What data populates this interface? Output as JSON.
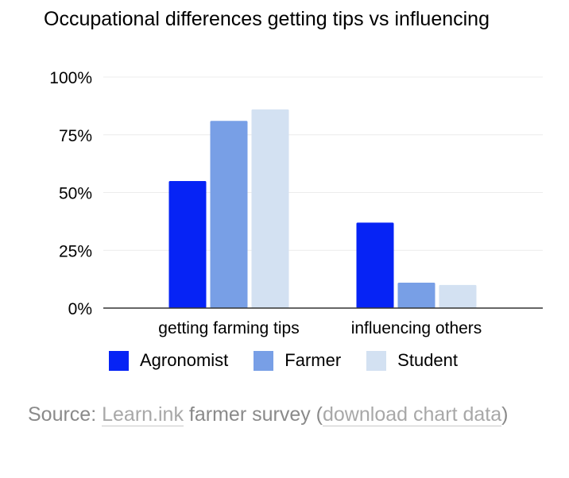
{
  "title": "Occupational differences getting tips vs influencing",
  "colors": {
    "Agronomist": "#0623f5",
    "Farmer": "#789fe6",
    "Student": "#d3e1f2",
    "grid": "#ececec",
    "axis": "#333333"
  },
  "legend": {
    "items": [
      "Agronomist",
      "Farmer",
      "Student"
    ]
  },
  "source": {
    "prefix": "Source: ",
    "link1": "Learn.ink",
    "middle": " farmer survey (",
    "link2": "download chart data",
    "suffix": ")"
  },
  "chart_data": {
    "type": "bar",
    "title": "Occupational differences getting tips vs influencing",
    "categories": [
      "getting farming tips",
      "influencing others"
    ],
    "series": [
      {
        "name": "Agronomist",
        "values": [
          55,
          37
        ]
      },
      {
        "name": "Farmer",
        "values": [
          81,
          11
        ]
      },
      {
        "name": "Student",
        "values": [
          86,
          10
        ]
      }
    ],
    "ylim": [
      0,
      100
    ],
    "yticks": [
      "0%",
      "25%",
      "50%",
      "75%",
      "100%"
    ],
    "grid": true,
    "legend_position": "bottom"
  }
}
